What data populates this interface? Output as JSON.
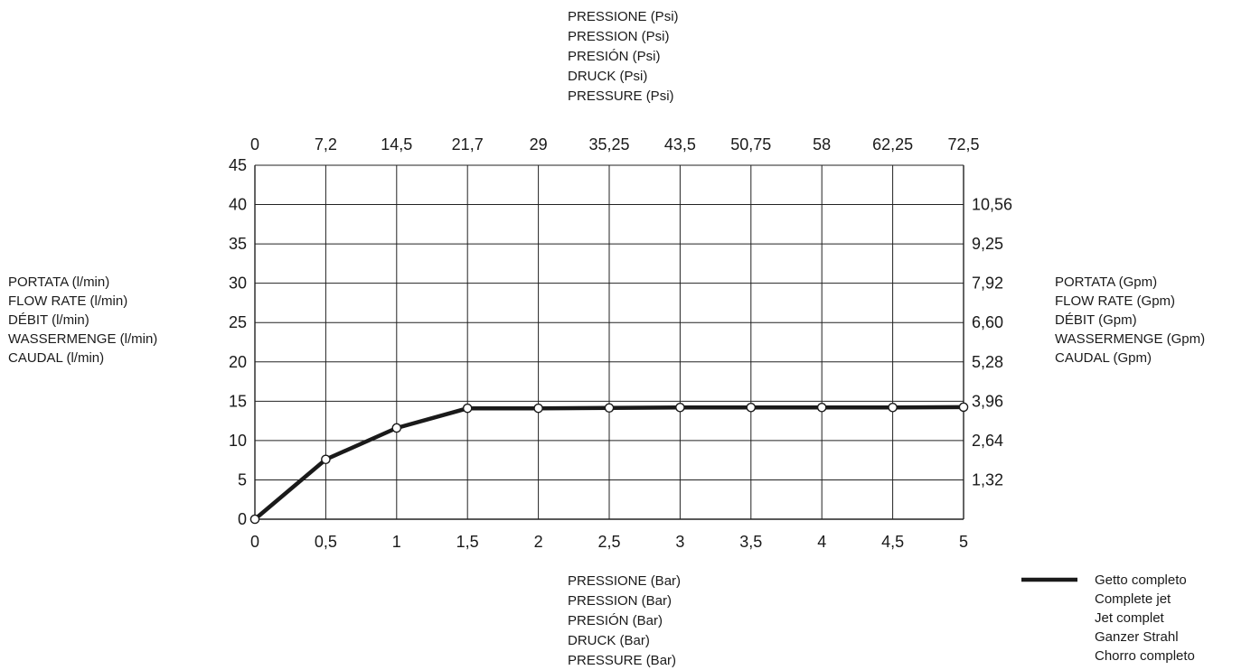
{
  "chart_data": {
    "type": "line",
    "x_bottom": {
      "ticks": [
        "0",
        "0,5",
        "1",
        "1,5",
        "2",
        "2,5",
        "3",
        "3,5",
        "4",
        "4,5",
        "5"
      ],
      "lim": [
        0,
        5
      ],
      "title_lines": [
        "PRESSIONE (Bar)",
        "PRESSION (Bar)",
        "PRESIÓN (Bar)",
        "DRUCK (Bar)",
        "PRESSURE (Bar)"
      ]
    },
    "x_top": {
      "ticks": [
        "0",
        "7,2",
        "14,5",
        "21,7",
        "29",
        "35,25",
        "43,5",
        "50,75",
        "58",
        "62,25",
        "72,5"
      ],
      "title_lines": [
        "PRESSIONE (Psi)",
        "PRESSION (Psi)",
        "PRESIÓN (Psi)",
        "DRUCK (Psi)",
        "PRESSURE (Psi)"
      ]
    },
    "y_left": {
      "ticks": [
        "0",
        "5",
        "10",
        "15",
        "20",
        "25",
        "30",
        "35",
        "40",
        "45"
      ],
      "lim": [
        0,
        45
      ],
      "title_lines": [
        "PORTATA (l/min)",
        "FLOW RATE (l/min)",
        "DÉBIT (l/min)",
        "WASSERMENGE (l/min)",
        "CAUDAL (l/min)"
      ]
    },
    "y_right": {
      "ticks": [
        {
          "label": "1,32",
          "at": 5
        },
        {
          "label": "2,64",
          "at": 10
        },
        {
          "label": "3,96",
          "at": 15
        },
        {
          "label": "5,28",
          "at": 20
        },
        {
          "label": "6,60",
          "at": 25
        },
        {
          "label": "7,92",
          "at": 30
        },
        {
          "label": "9,25",
          "at": 35
        },
        {
          "label": "10,56",
          "at": 40
        }
      ],
      "title_lines": [
        "PORTATA (Gpm)",
        "FLOW RATE (Gpm)",
        "DÉBIT (Gpm)",
        "WASSERMENGE (Gpm)",
        "CAUDAL (Gpm)"
      ]
    },
    "grid": true,
    "series": [
      {
        "name_lines": [
          "Getto completo",
          "Complete jet",
          "Jet complet",
          "Ganzer Strahl",
          "Chorro completo"
        ],
        "color": "#1a1a1a",
        "x": [
          0,
          0.5,
          1,
          1.5,
          2,
          2.5,
          3,
          3.5,
          4,
          4.5,
          5
        ],
        "y": [
          0,
          7.6,
          11.6,
          14.1,
          14.1,
          14.15,
          14.2,
          14.2,
          14.2,
          14.2,
          14.25
        ]
      }
    ]
  }
}
